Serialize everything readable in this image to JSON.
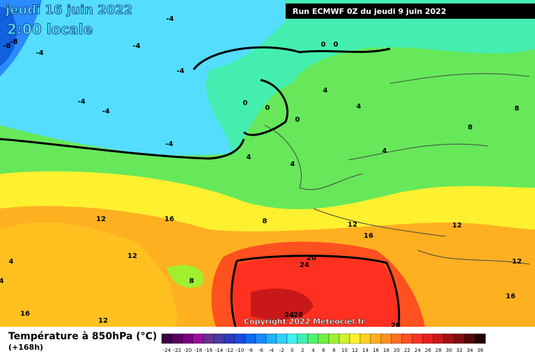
{
  "header": {
    "date": "jeudi 16 juin 2022",
    "time": "2:00 locale",
    "run": "Run ECMWF 0Z du jeudi 9 juin 2022"
  },
  "copyright": "Copyright 2022 Meteociel.fr",
  "footer": {
    "title": "Température à 850hPa (°C)",
    "lead": "(+168h)"
  },
  "map": {
    "contour_labels": [
      "-8",
      "-8",
      "-4",
      "-4",
      "-4",
      "-4",
      "-4",
      "-4",
      "-4",
      "0",
      "0",
      "0",
      "0",
      "0",
      "4",
      "4",
      "4",
      "4",
      "8",
      "8",
      "4",
      "12",
      "16",
      "8",
      "12",
      "16",
      "12",
      "12",
      "4",
      "8",
      "4",
      "16",
      "12",
      "20",
      "24",
      "28",
      "24",
      "20",
      "16",
      "12"
    ]
  },
  "legend": {
    "labels": [
      "-24",
      "-22",
      "-20",
      "-18",
      "-16",
      "-14",
      "-12",
      "-10",
      "-8",
      "-6",
      "-4",
      "-2",
      "0",
      "2",
      "4",
      "6",
      "8",
      "10",
      "12",
      "14",
      "16",
      "18",
      "20",
      "22",
      "24",
      "26",
      "28",
      "30",
      "32",
      "34",
      "36"
    ],
    "colors": [
      "#3a0040",
      "#5a0060",
      "#7a0080",
      "#9a10a0",
      "#6a3090",
      "#4a3aa0",
      "#2a3ac0",
      "#1a4ae0",
      "#0a6af0",
      "#1a8aff",
      "#20b0ff",
      "#30d0ff",
      "#40f0f0",
      "#40f0b0",
      "#50f070",
      "#70f040",
      "#a0f030",
      "#d0f030",
      "#fff030",
      "#ffd020",
      "#ffb020",
      "#ff9020",
      "#ff7020",
      "#ff5020",
      "#ff3020",
      "#e82020",
      "#c81818",
      "#a01010",
      "#801010",
      "#500808",
      "#200000"
    ]
  }
}
